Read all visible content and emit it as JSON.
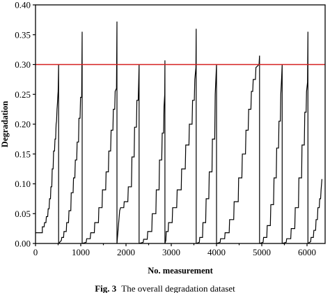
{
  "chart_data": {
    "type": "line",
    "title": "",
    "xlabel": "No. measurement",
    "ylabel": "Degradation",
    "xlim": [
      0,
      6400
    ],
    "ylim": [
      0,
      0.4
    ],
    "x_ticks": [
      0,
      1000,
      2000,
      3000,
      4000,
      5000,
      6000
    ],
    "y_ticks": [
      0.0,
      0.05,
      0.1,
      0.15,
      0.2,
      0.25,
      0.3,
      0.35,
      0.4
    ],
    "x_tick_labels": [
      "0",
      "1000",
      "2000",
      "3000",
      "4000",
      "5000",
      "6000"
    ],
    "y_tick_labels": [
      "0.00",
      "0.05",
      "0.10",
      "0.15",
      "0.20",
      "0.25",
      "0.30",
      "0.35",
      "0.40"
    ],
    "grid": false,
    "legend": "none",
    "threshold": {
      "y": 0.3,
      "color": "#d62020"
    },
    "series_color": "#000000",
    "series": [
      {
        "x": [
          0,
          150,
          150,
          190,
          200,
          230,
          240,
          270,
          280,
          300,
          310,
          330,
          340,
          360,
          370,
          390,
          400,
          420,
          430,
          445,
          455,
          465,
          475,
          485,
          495,
          500,
          510,
          510
        ],
        "y": [
          0.018,
          0.018,
          0.028,
          0.028,
          0.035,
          0.035,
          0.045,
          0.045,
          0.058,
          0.058,
          0.075,
          0.075,
          0.095,
          0.095,
          0.125,
          0.125,
          0.155,
          0.155,
          0.175,
          0.175,
          0.2,
          0.205,
          0.225,
          0.235,
          0.25,
          0.255,
          0.3,
          0.0
        ]
      },
      {
        "x": [
          510,
          570,
          580,
          620,
          630,
          680,
          690,
          730,
          740,
          780,
          790,
          830,
          840,
          870,
          880,
          910,
          920,
          950,
          960,
          985,
          995,
          1020,
          1030,
          1030
        ],
        "y": [
          0.0,
          0.005,
          0.01,
          0.01,
          0.02,
          0.02,
          0.035,
          0.035,
          0.055,
          0.055,
          0.085,
          0.085,
          0.11,
          0.11,
          0.14,
          0.14,
          0.17,
          0.17,
          0.21,
          0.21,
          0.245,
          0.245,
          0.355,
          0.0
        ]
      },
      {
        "x": [
          1030,
          1120,
          1130,
          1210,
          1220,
          1300,
          1310,
          1390,
          1400,
          1470,
          1480,
          1550,
          1560,
          1610,
          1620,
          1660,
          1670,
          1710,
          1720,
          1750,
          1760,
          1790,
          1800,
          1800
        ],
        "y": [
          0.0,
          0.002,
          0.008,
          0.008,
          0.018,
          0.018,
          0.035,
          0.035,
          0.06,
          0.06,
          0.09,
          0.09,
          0.12,
          0.12,
          0.155,
          0.155,
          0.19,
          0.19,
          0.225,
          0.225,
          0.255,
          0.26,
          0.372,
          0.0
        ]
      },
      {
        "x": [
          1800,
          1860,
          1880,
          1950,
          1960,
          2040,
          2050,
          2120,
          2130,
          2180,
          2190,
          2230,
          2240,
          2270,
          2280,
          2290,
          2290
        ],
        "y": [
          0.0,
          0.055,
          0.06,
          0.06,
          0.07,
          0.07,
          0.095,
          0.095,
          0.145,
          0.145,
          0.195,
          0.195,
          0.24,
          0.24,
          0.27,
          0.3,
          0.0
        ]
      },
      {
        "x": [
          2290,
          2380,
          2390,
          2470,
          2480,
          2570,
          2580,
          2660,
          2670,
          2730,
          2740,
          2790,
          2800,
          2830,
          2840,
          2855,
          2860,
          2860
        ],
        "y": [
          0.0,
          0.002,
          0.007,
          0.007,
          0.02,
          0.02,
          0.05,
          0.05,
          0.09,
          0.09,
          0.14,
          0.14,
          0.185,
          0.185,
          0.23,
          0.25,
          0.307,
          0.0
        ]
      },
      {
        "x": [
          2860,
          2880,
          2890,
          2930,
          2940,
          3020,
          3030,
          3120,
          3130,
          3220,
          3230,
          3310,
          3320,
          3390,
          3400,
          3460,
          3470,
          3510,
          3520,
          3545,
          3550,
          3550
        ],
        "y": [
          0.0,
          0.005,
          0.02,
          0.02,
          0.035,
          0.035,
          0.06,
          0.06,
          0.09,
          0.09,
          0.125,
          0.125,
          0.165,
          0.165,
          0.2,
          0.2,
          0.24,
          0.24,
          0.275,
          0.295,
          0.36,
          0.0
        ]
      },
      {
        "x": [
          3550,
          3620,
          3630,
          3690,
          3700,
          3760,
          3770,
          3830,
          3840,
          3900,
          3910,
          3960,
          3970,
          4000,
          4000
        ],
        "y": [
          0.0,
          0.002,
          0.01,
          0.01,
          0.035,
          0.035,
          0.075,
          0.075,
          0.12,
          0.12,
          0.175,
          0.175,
          0.25,
          0.3,
          0.0
        ]
      },
      {
        "x": [
          4000,
          4080,
          4090,
          4180,
          4190,
          4280,
          4290,
          4380,
          4390,
          4480,
          4490,
          4560,
          4570,
          4640,
          4650,
          4700,
          4710,
          4760,
          4770,
          4800,
          4810,
          4860,
          4870,
          4940,
          4950,
          4950
        ],
        "y": [
          0.0,
          0.002,
          0.008,
          0.008,
          0.018,
          0.018,
          0.04,
          0.04,
          0.07,
          0.07,
          0.11,
          0.11,
          0.15,
          0.15,
          0.19,
          0.19,
          0.225,
          0.225,
          0.255,
          0.255,
          0.275,
          0.275,
          0.295,
          0.3,
          0.315,
          0.0
        ]
      },
      {
        "x": [
          4950,
          5030,
          5040,
          5110,
          5120,
          5190,
          5200,
          5260,
          5270,
          5320,
          5330,
          5370,
          5380,
          5410,
          5420,
          5440,
          5450,
          5450
        ],
        "y": [
          0.0,
          0.002,
          0.01,
          0.01,
          0.03,
          0.03,
          0.065,
          0.065,
          0.11,
          0.11,
          0.16,
          0.16,
          0.205,
          0.205,
          0.25,
          0.28,
          0.3,
          0.0
        ]
      },
      {
        "x": [
          5450,
          5540,
          5550,
          5640,
          5650,
          5730,
          5740,
          5810,
          5820,
          5880,
          5890,
          5940,
          5950,
          5980,
          5990,
          6010,
          6020,
          6020
        ],
        "y": [
          0.0,
          0.002,
          0.008,
          0.008,
          0.025,
          0.025,
          0.06,
          0.06,
          0.11,
          0.11,
          0.165,
          0.165,
          0.22,
          0.22,
          0.255,
          0.27,
          0.355,
          0.0
        ]
      },
      {
        "x": [
          6020,
          6080,
          6090,
          6140,
          6150,
          6190,
          6200,
          6230,
          6240,
          6270,
          6280,
          6300,
          6310,
          6330
        ],
        "y": [
          0.0,
          0.003,
          0.01,
          0.01,
          0.022,
          0.022,
          0.04,
          0.04,
          0.06,
          0.06,
          0.075,
          0.075,
          0.09,
          0.108
        ]
      }
    ]
  },
  "caption": {
    "label": "Fig. 3",
    "text": "The overall degradation dataset"
  }
}
